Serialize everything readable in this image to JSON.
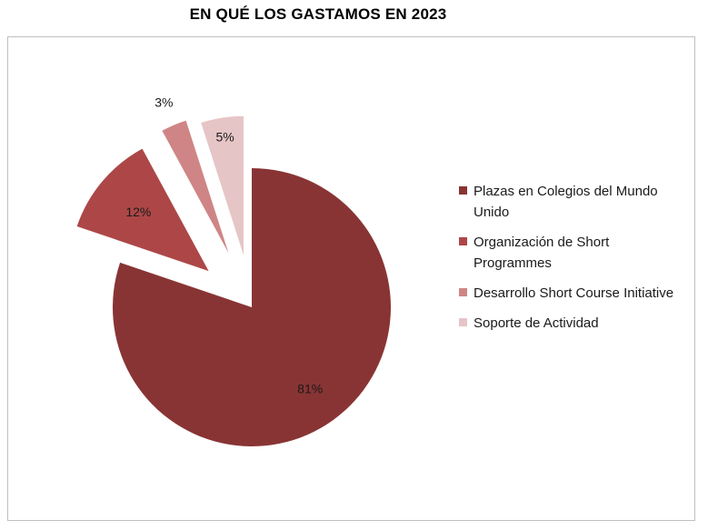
{
  "chart_data": {
    "type": "pie",
    "title": "EN QUÉ LOS GASTAMOS EN 2023",
    "slices": [
      {
        "name": "Plazas en Colegios del Mundo Unido",
        "value": 81,
        "label": "81%",
        "color": "#893434"
      },
      {
        "name": "Organización de Short Programmes",
        "value": 12,
        "label": "12%",
        "color": "#ad4747"
      },
      {
        "name": "Desarrollo Short Course Initiative",
        "value": 3,
        "label": "3%",
        "color": "#cf8585"
      },
      {
        "name": "Soporte de Actividad",
        "value": 5,
        "label": "5%",
        "color": "#e6c5c7"
      }
    ],
    "legend_position": "right",
    "exploded_slices": [
      "Organización de Short Programmes",
      "Desarrollo Short Course Initiative",
      "Soporte de Actividad"
    ]
  }
}
